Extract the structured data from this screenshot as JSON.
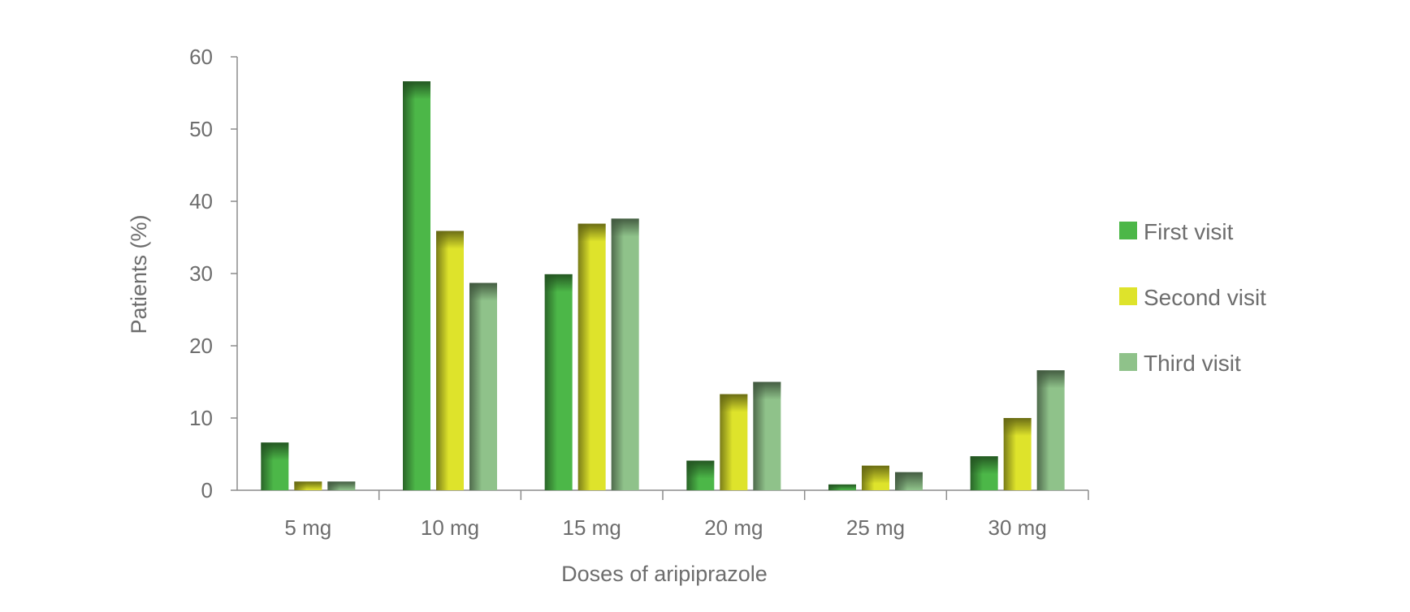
{
  "chart_data": {
    "type": "bar",
    "title": "",
    "xlabel": "Doses of aripiprazole",
    "ylabel": "Patients (%)",
    "ylim": [
      0,
      60
    ],
    "yticks": [
      0,
      10,
      20,
      30,
      40,
      50,
      60
    ],
    "grid": false,
    "legend_position": "right",
    "categories": [
      "5 mg",
      "10 mg",
      "15 mg",
      "20 mg",
      "25 mg",
      "30 mg"
    ],
    "series": [
      {
        "name": "First visit",
        "color": "#4cb748",
        "values": [
          6.6,
          56.6,
          29.9,
          4.1,
          0.8,
          4.7
        ]
      },
      {
        "name": "Second visit",
        "color": "#dee32b",
        "values": [
          1.2,
          35.9,
          36.9,
          13.3,
          3.4,
          10.0
        ]
      },
      {
        "name": "Third visit",
        "color": "#8fc28a",
        "values": [
          1.2,
          28.7,
          37.6,
          15.0,
          2.5,
          16.6
        ]
      }
    ]
  }
}
